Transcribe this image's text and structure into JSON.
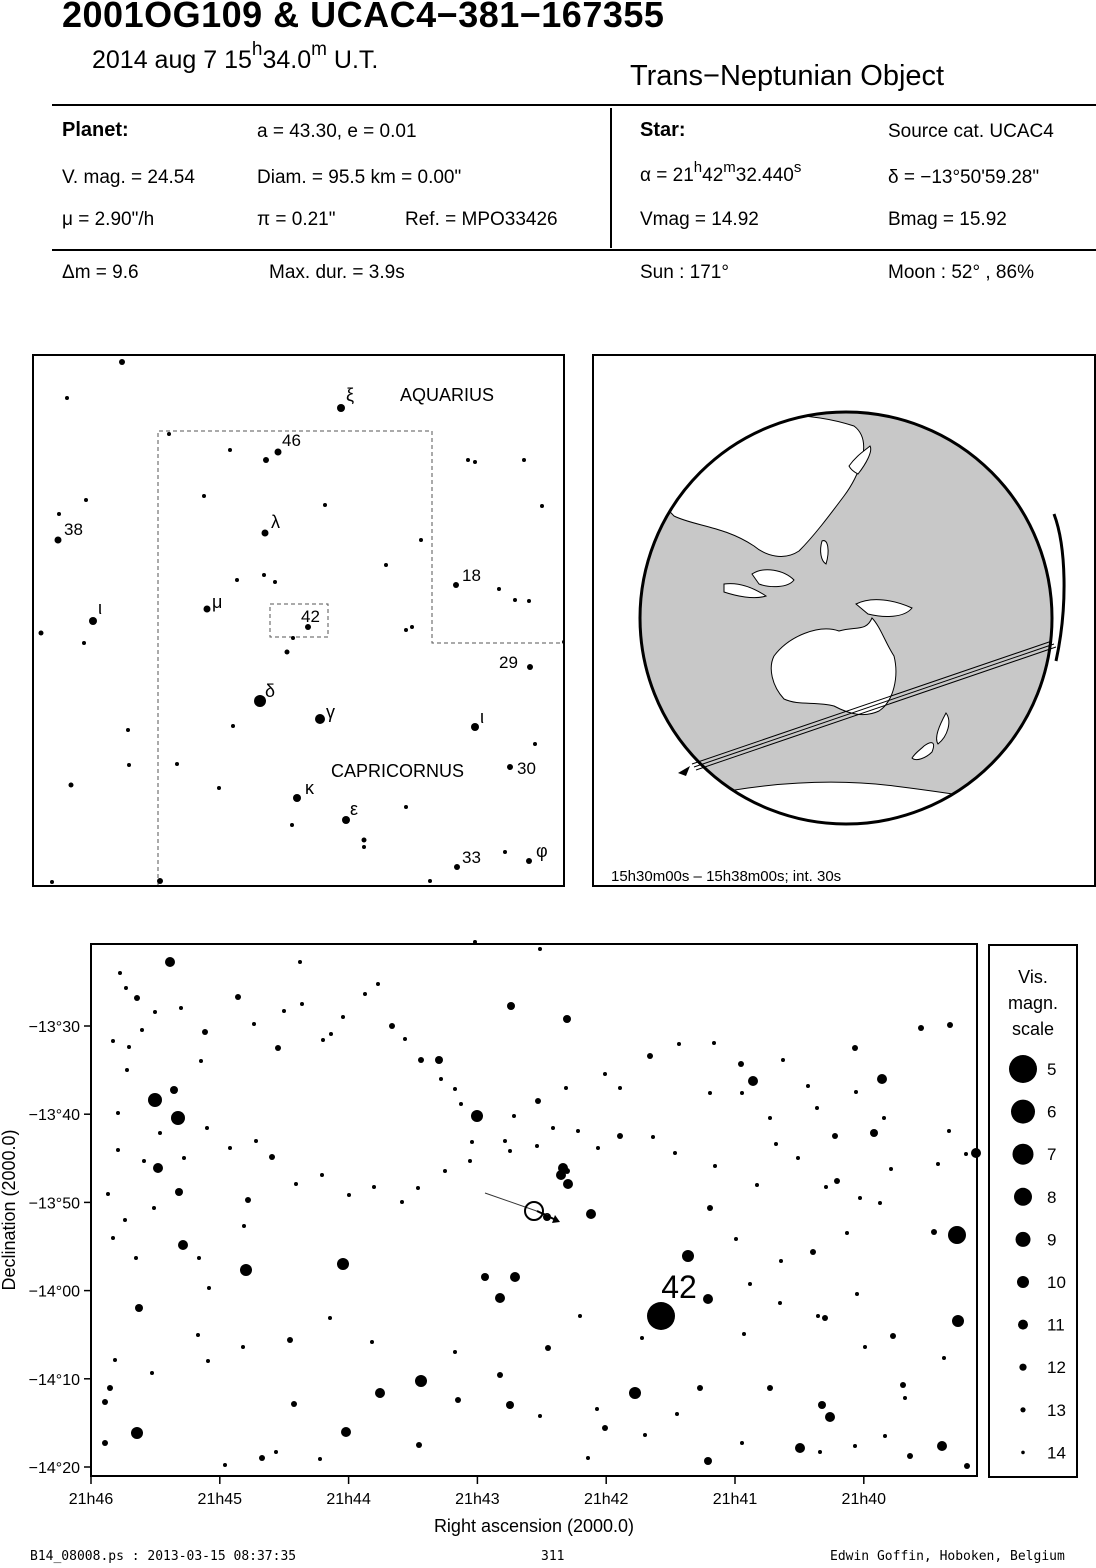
{
  "header": {
    "title": "2001OG109  &  UCAC4−381−167355",
    "date_prefix": "2014 aug  7  15",
    "date_h": "h",
    "date_min": "34.0",
    "date_m": "m",
    "date_suffix": " U.T.",
    "object_type": "Trans−Neptunian Object"
  },
  "planet": {
    "label": "Planet:",
    "orbit": "a = 43.30, e = 0.01",
    "vmag": "V. mag. = 24.54",
    "diam": "Diam. = 95.5 km = 0.00\"",
    "mu": "μ =  2.90\"/h",
    "pi": "π =  0.21\"",
    "ref": "Ref. = MPO33426",
    "dm": "Δm = 9.6",
    "maxdur": "Max. dur. = 3.9s"
  },
  "star": {
    "label": "Star:",
    "source": "Source cat.  UCAC4",
    "ra_a": "α = 21",
    "ra_h": "h",
    "ra_b": "42",
    "ra_m": "m",
    "ra_c": "32.440",
    "ra_s": "s",
    "dec": "δ = −13°50'59.28\"",
    "vmag": "Vmag = 14.92",
    "bmag": "Bmag = 15.92",
    "sun": "Sun : 171°",
    "moon": "Moon :  52° , 86%"
  },
  "finder": {
    "constellations": [
      "AQUARIUS",
      "CAPRICORNUS"
    ],
    "labels": [
      "ξ",
      "46",
      "38",
      "λ",
      "18",
      "ι",
      "μ",
      "42",
      "29",
      "δ",
      "γ",
      "ι",
      "30",
      "κ",
      "ε",
      "33",
      "φ"
    ]
  },
  "globe": {
    "time_range": "15h30m00s – 15h38m00s; int. 30s",
    "ocean_color": "#ffffff",
    "land_color": "#c8c8c8"
  },
  "chart_data": {
    "type": "scatter",
    "xlabel": "Right ascension (2000.0)",
    "ylabel": "Declination (2000.0)",
    "x_ticks": [
      "21h46",
      "21h45",
      "21h44",
      "21h43",
      "21h42",
      "21h41",
      "21h40"
    ],
    "y_ticks": [
      "−13°30",
      "−13°40",
      "−13°50",
      "−14°00",
      "−14°10",
      "−14°20"
    ],
    "star_label": "42",
    "target": {
      "ra": "21h42m32.440s",
      "dec": "−13°50'59.28\""
    }
  },
  "scale": {
    "title_lines": [
      "Vis.",
      "magn.",
      "scale"
    ],
    "magnitudes": [
      "5",
      "6",
      "7",
      "8",
      "9",
      "10",
      "11",
      "12",
      "13",
      "14"
    ]
  },
  "footer": {
    "file": "B14_08008.ps : 2013-03-15 08:37:35",
    "page": "311",
    "author": "Edwin Goffin, Hoboken, Belgium"
  }
}
